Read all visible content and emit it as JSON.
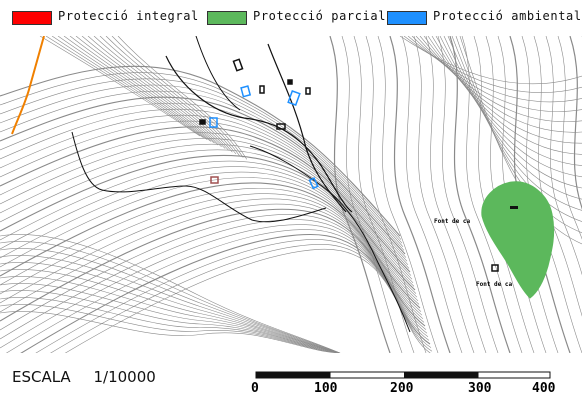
{
  "legend": {
    "items": [
      {
        "label": "Protecció integral",
        "color": "#ff0000"
      },
      {
        "label": "Protecció parcial",
        "color": "#5cb85c"
      },
      {
        "label": "Protecció ambiental",
        "color": "#1e90ff"
      }
    ]
  },
  "map": {
    "places": [
      {
        "label": "Font de ca"
      },
      {
        "label": "Font de ca"
      }
    ]
  },
  "scale": {
    "prefix": "ESCALA",
    "ratio": "1/10000",
    "ticks": [
      "0",
      "100",
      "200",
      "300",
      "400"
    ]
  },
  "colors": {
    "contour": "#8a8a8a",
    "road": "#000000",
    "stream": "#f08000",
    "partial_zone": "#5cb85c",
    "building_outline": "#1e90ff"
  }
}
